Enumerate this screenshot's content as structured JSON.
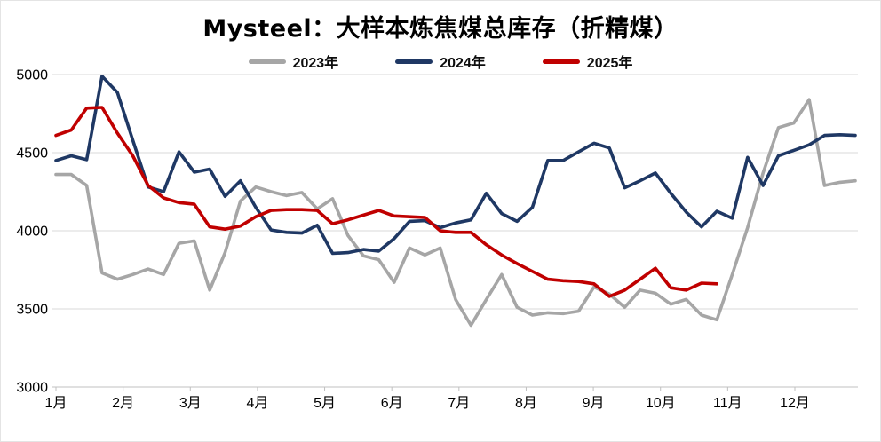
{
  "chart_data": {
    "type": "line",
    "title": "Mysteel：大样本炼焦煤总库存（折精煤）",
    "x_axis": {
      "tick_labels": [
        "1月",
        "2月",
        "3月",
        "4月",
        "5月",
        "6月",
        "7月",
        "8月",
        "9月",
        "10月",
        "11月",
        "12月"
      ],
      "granularity": "weekly"
    },
    "y_axis": {
      "range": [
        3000,
        5000
      ],
      "ticks": [
        3000,
        3500,
        4000,
        4500,
        5000
      ],
      "tick_step": 500
    },
    "grid": true,
    "legend_position": "top",
    "series": [
      {
        "name": "2023年",
        "color": "#a6a6a6",
        "values": [
          4360,
          4360,
          4290,
          3730,
          3690,
          3720,
          3755,
          3720,
          3920,
          3935,
          3620,
          3860,
          4190,
          4280,
          4250,
          4225,
          4245,
          4140,
          4205,
          3970,
          3840,
          3815,
          3670,
          3890,
          3845,
          3890,
          3560,
          3395,
          3560,
          3720,
          3510,
          3460,
          3475,
          3470,
          3485,
          3640,
          3595,
          3510,
          3620,
          3600,
          3530,
          3560,
          3460,
          3430,
          3720,
          4020,
          4370,
          4660,
          4690,
          4840,
          4290,
          4310,
          4320
        ]
      },
      {
        "name": "2024年",
        "color": "#1f3864",
        "values": [
          4450,
          4480,
          4455,
          4990,
          4885,
          4580,
          4280,
          4250,
          4505,
          4375,
          4395,
          4220,
          4320,
          4150,
          4005,
          3990,
          3985,
          4035,
          3855,
          3860,
          3880,
          3870,
          3950,
          4060,
          4065,
          4020,
          4050,
          4070,
          4240,
          4110,
          4060,
          4150,
          4450,
          4450,
          4505,
          4560,
          4530,
          4275,
          4320,
          4370,
          4240,
          4120,
          4025,
          4125,
          4080,
          4470,
          4290,
          4480,
          4515,
          4550,
          4610,
          4615,
          4610
        ]
      },
      {
        "name": "2025年",
        "color": "#c00000",
        "values": [
          4610,
          4645,
          4785,
          4790,
          4625,
          4480,
          4290,
          4210,
          4180,
          4170,
          4025,
          4010,
          4030,
          4090,
          4130,
          4135,
          4135,
          4130,
          4045,
          4070,
          4100,
          4130,
          4095,
          4090,
          4085,
          4000,
          3990,
          3990,
          3910,
          3845,
          3790,
          3740,
          3690,
          3680,
          3675,
          3660,
          3580,
          3620,
          3690,
          3760,
          3635,
          3620,
          3665,
          3660
        ]
      }
    ],
    "style": {
      "gridline_color": "#dadada",
      "axis_line_color": "#c0c0c0",
      "line_width": 3.6
    }
  }
}
